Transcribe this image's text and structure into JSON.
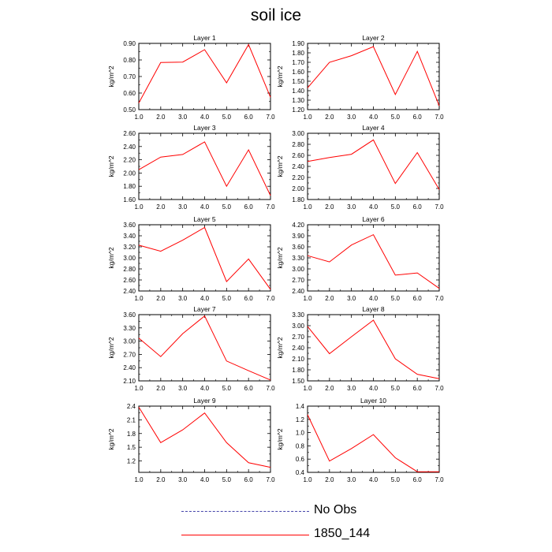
{
  "title": "soil ice",
  "colors": {
    "model_line": "#ff0000",
    "obs_line": "#4444aa",
    "axis": "#000000"
  },
  "legend": {
    "obs_label": "No Obs",
    "model_label": "1850_144"
  },
  "chart_data": [
    {
      "type": "line",
      "title": "Layer 1",
      "ylabel": "kg/m^2",
      "x": [
        1,
        2,
        3,
        4,
        5,
        6,
        7
      ],
      "xticks": [
        "1.0",
        "2.0",
        "3.0",
        "4.0",
        "5.0",
        "6.0",
        "7.0"
      ],
      "ylim": [
        0.5,
        0.9
      ],
      "yticks": [
        "0.50",
        "0.60",
        "0.70",
        "0.80",
        "0.90"
      ],
      "ytick_vals": [
        0.5,
        0.6,
        0.7,
        0.8,
        0.9
      ],
      "series": [
        {
          "name": "1850_144",
          "values": [
            0.54,
            0.785,
            0.787,
            0.862,
            0.662,
            0.893,
            0.575
          ]
        }
      ]
    },
    {
      "type": "line",
      "title": "Layer 2",
      "ylabel": "kg/m^2",
      "x": [
        1,
        2,
        3,
        4,
        5,
        6,
        7
      ],
      "xticks": [
        "1.0",
        "2.0",
        "3.0",
        "4.0",
        "5.0",
        "6.0",
        "7.0"
      ],
      "ylim": [
        1.2,
        1.9
      ],
      "yticks": [
        "1.20",
        "1.30",
        "1.40",
        "1.50",
        "1.60",
        "1.70",
        "1.80",
        "1.90"
      ],
      "ytick_vals": [
        1.2,
        1.3,
        1.4,
        1.5,
        1.6,
        1.7,
        1.8,
        1.9
      ],
      "series": [
        {
          "name": "1850_144",
          "values": [
            1.43,
            1.7,
            1.77,
            1.865,
            1.36,
            1.815,
            1.24
          ]
        }
      ]
    },
    {
      "type": "line",
      "title": "Layer 3",
      "ylabel": "kg/m^2",
      "x": [
        1,
        2,
        3,
        4,
        5,
        6,
        7
      ],
      "xticks": [
        "1.0",
        "2.0",
        "3.0",
        "4.0",
        "5.0",
        "6.0",
        "7.0"
      ],
      "ylim": [
        1.6,
        2.6
      ],
      "yticks": [
        "1.60",
        "1.80",
        "2.00",
        "2.20",
        "2.40",
        "2.60"
      ],
      "ytick_vals": [
        1.6,
        1.8,
        2.0,
        2.2,
        2.4,
        2.6
      ],
      "series": [
        {
          "name": "1850_144",
          "values": [
            2.05,
            2.24,
            2.28,
            2.47,
            1.8,
            2.35,
            1.66
          ]
        }
      ]
    },
    {
      "type": "line",
      "title": "Layer 4",
      "ylabel": "kg/m^2",
      "x": [
        1,
        2,
        3,
        4,
        5,
        6,
        7
      ],
      "xticks": [
        "1.0",
        "2.0",
        "3.0",
        "4.0",
        "5.0",
        "6.0",
        "7.0"
      ],
      "ylim": [
        1.8,
        3.0
      ],
      "yticks": [
        "1.80",
        "2.00",
        "2.20",
        "2.40",
        "2.60",
        "2.80",
        "3.00"
      ],
      "ytick_vals": [
        1.8,
        2.0,
        2.2,
        2.4,
        2.6,
        2.8,
        3.0
      ],
      "series": [
        {
          "name": "1850_144",
          "values": [
            2.49,
            2.56,
            2.62,
            2.88,
            2.09,
            2.65,
            1.98
          ]
        }
      ]
    },
    {
      "type": "line",
      "title": "Layer 5",
      "ylabel": "kg/m^2",
      "x": [
        1,
        2,
        3,
        4,
        5,
        6,
        7
      ],
      "xticks": [
        "1.0",
        "2.0",
        "3.0",
        "4.0",
        "5.0",
        "6.0",
        "7.0"
      ],
      "ylim": [
        2.4,
        3.6
      ],
      "yticks": [
        "2.40",
        "2.60",
        "2.80",
        "3.00",
        "3.20",
        "3.40",
        "3.60"
      ],
      "ytick_vals": [
        2.4,
        2.6,
        2.8,
        3.0,
        3.2,
        3.4,
        3.6
      ],
      "series": [
        {
          "name": "1850_144",
          "values": [
            3.23,
            3.12,
            3.32,
            3.55,
            2.57,
            2.98,
            2.43
          ]
        }
      ]
    },
    {
      "type": "line",
      "title": "Layer 6",
      "ylabel": "kg/m^2",
      "x": [
        1,
        2,
        3,
        4,
        5,
        6,
        7
      ],
      "xticks": [
        "1.0",
        "2.0",
        "3.0",
        "4.0",
        "5.0",
        "6.0",
        "7.0"
      ],
      "ylim": [
        2.4,
        4.2
      ],
      "yticks": [
        "2.40",
        "2.70",
        "3.00",
        "3.30",
        "3.60",
        "3.90",
        "4.20"
      ],
      "ytick_vals": [
        2.4,
        2.7,
        3.0,
        3.3,
        3.6,
        3.9,
        4.2
      ],
      "series": [
        {
          "name": "1850_144",
          "values": [
            3.36,
            3.19,
            3.65,
            3.93,
            2.83,
            2.89,
            2.47
          ]
        }
      ]
    },
    {
      "type": "line",
      "title": "Layer 7",
      "ylabel": "kg/m^2",
      "x": [
        1,
        2,
        3,
        4,
        5,
        6,
        7
      ],
      "xticks": [
        "1.0",
        "2.0",
        "3.0",
        "4.0",
        "5.0",
        "6.0",
        "7.0"
      ],
      "ylim": [
        2.1,
        3.6
      ],
      "yticks": [
        "2.10",
        "2.40",
        "2.70",
        "3.00",
        "3.30",
        "3.60"
      ],
      "ytick_vals": [
        2.1,
        2.4,
        2.7,
        3.0,
        3.3,
        3.6
      ],
      "series": [
        {
          "name": "1850_144",
          "values": [
            3.07,
            2.65,
            3.17,
            3.57,
            2.55,
            2.33,
            2.12
          ]
        }
      ]
    },
    {
      "type": "line",
      "title": "Layer 8",
      "ylabel": "kg/m^2",
      "x": [
        1,
        2,
        3,
        4,
        5,
        6,
        7
      ],
      "xticks": [
        "1.0",
        "2.0",
        "3.0",
        "4.0",
        "5.0",
        "6.0",
        "7.0"
      ],
      "ylim": [
        1.5,
        3.3
      ],
      "yticks": [
        "1.50",
        "1.80",
        "2.10",
        "2.40",
        "2.70",
        "3.00",
        "3.30"
      ],
      "ytick_vals": [
        1.5,
        1.8,
        2.1,
        2.4,
        2.7,
        3.0,
        3.3
      ],
      "series": [
        {
          "name": "1850_144",
          "values": [
            2.98,
            2.24,
            2.7,
            3.15,
            2.1,
            1.68,
            1.56
          ]
        }
      ]
    },
    {
      "type": "line",
      "title": "Layer 9",
      "ylabel": "kg/m^2",
      "x": [
        1,
        2,
        3,
        4,
        5,
        6,
        7
      ],
      "xticks": [
        "1.0",
        "2.0",
        "3.0",
        "4.0",
        "5.0",
        "6.0",
        "7.0"
      ],
      "ylim": [
        0.95,
        2.4
      ],
      "yticks": [
        "1.2",
        "1.5",
        "1.8",
        "2.1",
        "2.4"
      ],
      "ytick_vals": [
        1.2,
        1.5,
        1.8,
        2.1,
        2.4
      ],
      "series": [
        {
          "name": "1850_144",
          "values": [
            2.38,
            1.6,
            1.88,
            2.25,
            1.6,
            1.16,
            1.06
          ]
        }
      ]
    },
    {
      "type": "line",
      "title": "Layer 10",
      "ylabel": "kg/m^2",
      "x": [
        1,
        2,
        3,
        4,
        5,
        6,
        7
      ],
      "xticks": [
        "1.0",
        "2.0",
        "3.0",
        "4.0",
        "5.0",
        "6.0",
        "7.0"
      ],
      "ylim": [
        0.4,
        1.4
      ],
      "yticks": [
        "0.4",
        "0.6",
        "0.8",
        "1.0",
        "1.2",
        "1.4"
      ],
      "ytick_vals": [
        0.4,
        0.6,
        0.8,
        1.0,
        1.2,
        1.4
      ],
      "series": [
        {
          "name": "1850_144",
          "values": [
            1.27,
            0.57,
            0.76,
            0.97,
            0.62,
            0.41,
            0.41
          ]
        }
      ]
    }
  ]
}
